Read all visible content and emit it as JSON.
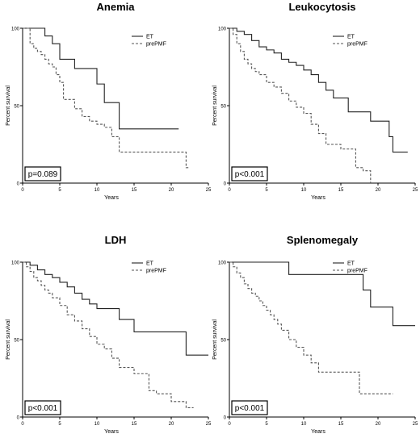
{
  "chart_data": [
    {
      "type": "line",
      "title": "Anemia",
      "xlabel": "Years",
      "ylabel": "Percent survival",
      "xlim": [
        0,
        25
      ],
      "ylim": [
        0,
        100
      ],
      "xticks": [
        0,
        5,
        10,
        15,
        20,
        25
      ],
      "yticks": [
        0,
        50,
        100
      ],
      "pvalue": "p=0.089",
      "legend_position": "top-right",
      "series": [
        {
          "name": "ET",
          "style": "solid",
          "x": [
            0,
            2,
            3,
            4,
            5,
            7,
            10,
            11,
            13,
            21
          ],
          "y": [
            100,
            100,
            95,
            90,
            80,
            74,
            64,
            52,
            35,
            35
          ]
        },
        {
          "name": "prePMF",
          "style": "dashed",
          "x": [
            0,
            1,
            1.5,
            2,
            2.5,
            3,
            3.5,
            4,
            4.5,
            5,
            5.5,
            6,
            7,
            8,
            9,
            10,
            11,
            12,
            13,
            21,
            22,
            22.5
          ],
          "y": [
            100,
            90,
            87,
            85,
            83,
            80,
            77,
            75,
            70,
            65,
            54,
            54,
            48,
            43,
            40,
            38,
            36,
            30,
            20,
            20,
            10,
            10
          ]
        }
      ]
    },
    {
      "type": "line",
      "title": "Leukocytosis",
      "xlabel": "Years",
      "ylabel": "Percent survival",
      "xlim": [
        0,
        25
      ],
      "ylim": [
        0,
        100
      ],
      "xticks": [
        0,
        5,
        10,
        15,
        20,
        25
      ],
      "yticks": [
        0,
        50,
        100
      ],
      "pvalue": "p<0.001",
      "legend_position": "top-right",
      "series": [
        {
          "name": "ET",
          "style": "solid",
          "x": [
            0,
            1,
            2,
            3,
            4,
            5,
            6,
            7,
            8,
            9,
            10,
            11,
            12,
            13,
            14,
            16,
            19,
            21.5,
            22,
            24
          ],
          "y": [
            100,
            98,
            96,
            92,
            88,
            86,
            84,
            80,
            78,
            76,
            73,
            70,
            65,
            60,
            55,
            46,
            40,
            30,
            20,
            20
          ]
        },
        {
          "name": "prePMF",
          "style": "dashed",
          "x": [
            0,
            0.5,
            1,
            1.5,
            2,
            2.5,
            3,
            3.5,
            4,
            5,
            6,
            7,
            8,
            9,
            10,
            11,
            12,
            13,
            15,
            17,
            18,
            19
          ],
          "y": [
            100,
            96,
            90,
            85,
            80,
            77,
            74,
            72,
            70,
            65,
            62,
            58,
            53,
            49,
            45,
            38,
            32,
            25,
            22,
            10,
            8,
            0
          ]
        }
      ]
    },
    {
      "type": "line",
      "title": "LDH",
      "xlabel": "Years",
      "ylabel": "Percent survival",
      "xlim": [
        0,
        25
      ],
      "ylim": [
        0,
        100
      ],
      "xticks": [
        0,
        5,
        10,
        15,
        20,
        25
      ],
      "yticks": [
        0,
        50,
        100
      ],
      "pvalue": "p<0.001",
      "legend_position": "top-right",
      "series": [
        {
          "name": "ET",
          "style": "solid",
          "x": [
            0,
            1,
            2,
            3,
            4,
            5,
            6,
            7,
            8,
            9,
            10,
            13,
            15,
            22,
            25
          ],
          "y": [
            100,
            98,
            95,
            92,
            90,
            87,
            84,
            80,
            76,
            73,
            70,
            63,
            55,
            40,
            40
          ]
        },
        {
          "name": "prePMF",
          "style": "dashed",
          "x": [
            0,
            0.5,
            1,
            1.5,
            2,
            2.5,
            3,
            3.5,
            4,
            5,
            6,
            7,
            8,
            9,
            10,
            11,
            12,
            13,
            15,
            17,
            18,
            20,
            22,
            23
          ],
          "y": [
            100,
            97,
            94,
            90,
            88,
            85,
            82,
            80,
            77,
            72,
            66,
            62,
            57,
            52,
            47,
            44,
            38,
            32,
            28,
            17,
            15,
            10,
            6,
            6
          ]
        }
      ]
    },
    {
      "type": "line",
      "title": "Splenomegaly",
      "xlabel": "Years",
      "ylabel": "Percent survival",
      "xlim": [
        0,
        25
      ],
      "ylim": [
        0,
        100
      ],
      "xticks": [
        0,
        5,
        10,
        15,
        20,
        25
      ],
      "yticks": [
        0,
        50,
        100
      ],
      "pvalue": "p<0.001",
      "legend_position": "top-right",
      "series": [
        {
          "name": "ET",
          "style": "solid",
          "x": [
            0,
            8,
            18,
            19,
            22,
            25
          ],
          "y": [
            100,
            92,
            82,
            71,
            59,
            59
          ]
        },
        {
          "name": "prePMF",
          "style": "dashed",
          "x": [
            0,
            0.5,
            1,
            1.5,
            2,
            2.5,
            3,
            3.5,
            4,
            4.5,
            5,
            5.5,
            6,
            6.5,
            7,
            8,
            9,
            10,
            11,
            12,
            17.5,
            22
          ],
          "y": [
            100,
            97,
            93,
            90,
            86,
            83,
            80,
            78,
            75,
            72,
            69,
            66,
            63,
            60,
            56,
            50,
            45,
            40,
            35,
            29,
            15,
            15
          ]
        }
      ]
    }
  ]
}
